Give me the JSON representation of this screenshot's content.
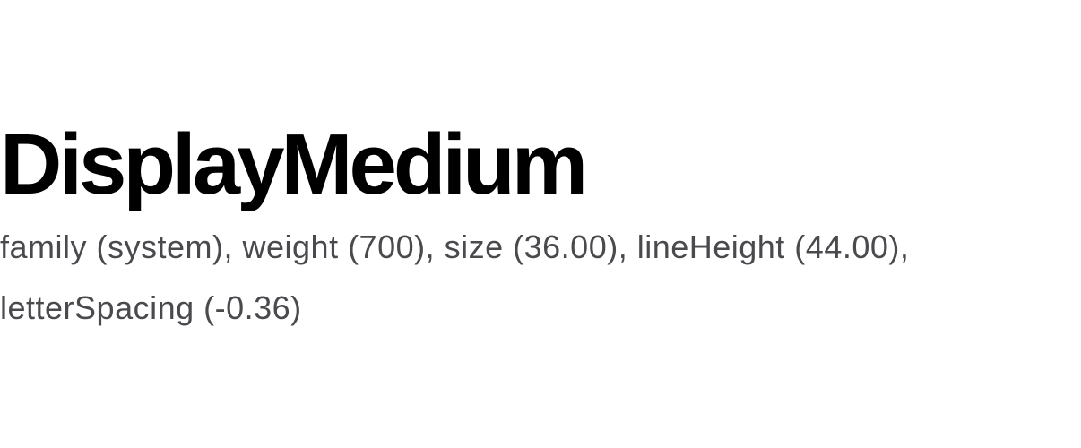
{
  "sample": {
    "title": "DisplayMedium",
    "description": "family (system), weight (700), size (36.00), lineHeight (44.00), letterSpacing (-0.36)"
  },
  "colors": {
    "background": "#ffffff",
    "title": "#000000",
    "description": "#4a4a4e"
  }
}
